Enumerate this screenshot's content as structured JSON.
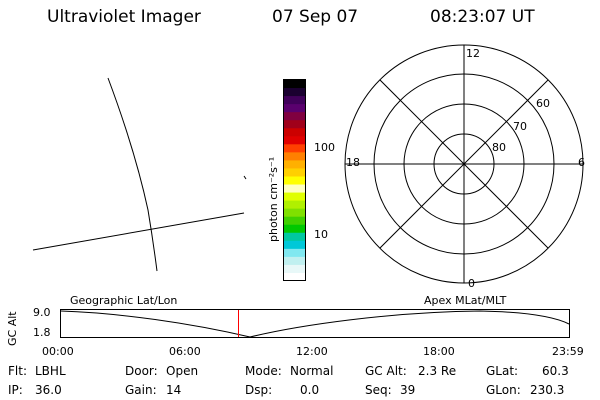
{
  "header": {
    "title": "Ultraviolet Imager",
    "date": "07 Sep 07",
    "time": "08:23:07 UT"
  },
  "colorbar": {
    "unit_label": "photon cm⁻²s⁻¹",
    "tick_labels": [
      "100",
      "10"
    ],
    "colors": [
      "#000000",
      "#1a0030",
      "#40005a",
      "#5a006e",
      "#800040",
      "#a0001a",
      "#cc0000",
      "#e00000",
      "#ff4000",
      "#ff8000",
      "#ffb000",
      "#ffd000",
      "#ffff00",
      "#ffffc0",
      "#e0ff00",
      "#b0f000",
      "#80e000",
      "#40d000",
      "#00c800",
      "#00c8a0",
      "#00c8d8",
      "#80e8f0",
      "#c0f0f0",
      "#e8f8f8",
      "#ffffff"
    ]
  },
  "polar": {
    "mlt_labels": {
      "top": "12",
      "left": "18",
      "right": "6",
      "bottom": "0"
    },
    "lat_labels": [
      "60",
      "70",
      "80"
    ]
  },
  "timeline": {
    "left_caption": "Geographic Lat/Lon",
    "right_caption": "Apex MLat/MLT",
    "ylabel": "GC Alt",
    "ytick_top": "9.0",
    "ytick_bottom": "1.8",
    "xticks": [
      "00:00",
      "06:00",
      "12:00",
      "18:00",
      "23:59"
    ],
    "current_time": "08:23:07"
  },
  "info": {
    "filter": {
      "label": "Flt:",
      "value": "LBHL"
    },
    "ip": {
      "label": "IP:",
      "value": "36.0"
    },
    "door": {
      "label": "Door:",
      "value": "Open"
    },
    "gain": {
      "label": "Gain:",
      "value": "14"
    },
    "mode": {
      "label": "Mode:",
      "value": "Normal"
    },
    "dsp": {
      "label": "Dsp:",
      "value": "0.0"
    },
    "gcalt": {
      "label": "GC Alt:",
      "value": "2.3 Re"
    },
    "seq": {
      "label": "Seq:",
      "value": "39"
    },
    "glat": {
      "label": "GLat:",
      "value": "60.3"
    },
    "glon": {
      "label": "GLon:",
      "value": "230.3"
    }
  }
}
